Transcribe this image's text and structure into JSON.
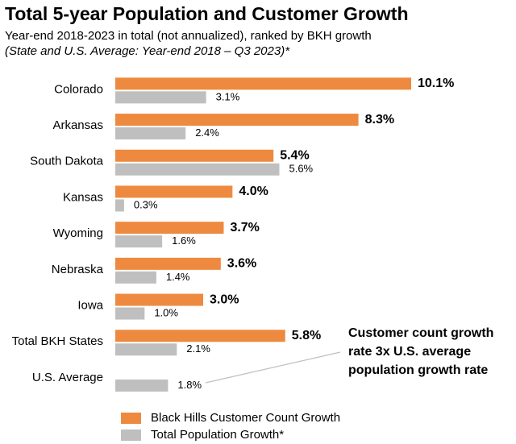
{
  "chart_data": {
    "type": "bar",
    "orientation": "horizontal",
    "title": "Total 5-year Population and Customer Growth",
    "subtitle": "Year-end 2018-2023 in total (not annualized), ranked by BKH growth",
    "note": "(State and U.S. Average: Year-end 2018 – Q3 2023)*",
    "categories": [
      "Colorado",
      "Arkansas",
      "South Dakota",
      "Kansas",
      "Wyoming",
      "Nebraska",
      "Iowa",
      "Total BKH States",
      "U.S. Average"
    ],
    "series": [
      {
        "name": "Black Hills Customer Count Growth",
        "color": "#ee8a3f",
        "values": [
          10.1,
          8.3,
          5.4,
          4.0,
          3.7,
          3.6,
          3.0,
          5.8,
          null
        ],
        "value_labels": [
          "10.1%",
          "8.3%",
          "5.4%",
          "4.0%",
          "3.7%",
          "3.6%",
          "3.0%",
          "5.8%",
          null
        ]
      },
      {
        "name": "Total Population Growth*",
        "color": "#bfbfbf",
        "values": [
          3.1,
          2.4,
          5.6,
          0.3,
          1.6,
          1.4,
          1.0,
          2.1,
          1.8
        ],
        "value_labels": [
          "3.1%",
          "2.4%",
          "5.6%",
          "0.3%",
          "1.6%",
          "1.4%",
          "1.0%",
          "2.1%",
          "1.8%"
        ]
      }
    ],
    "annotation": [
      "Customer count growth",
      "rate 3x U.S. average",
      "population growth rate"
    ]
  }
}
